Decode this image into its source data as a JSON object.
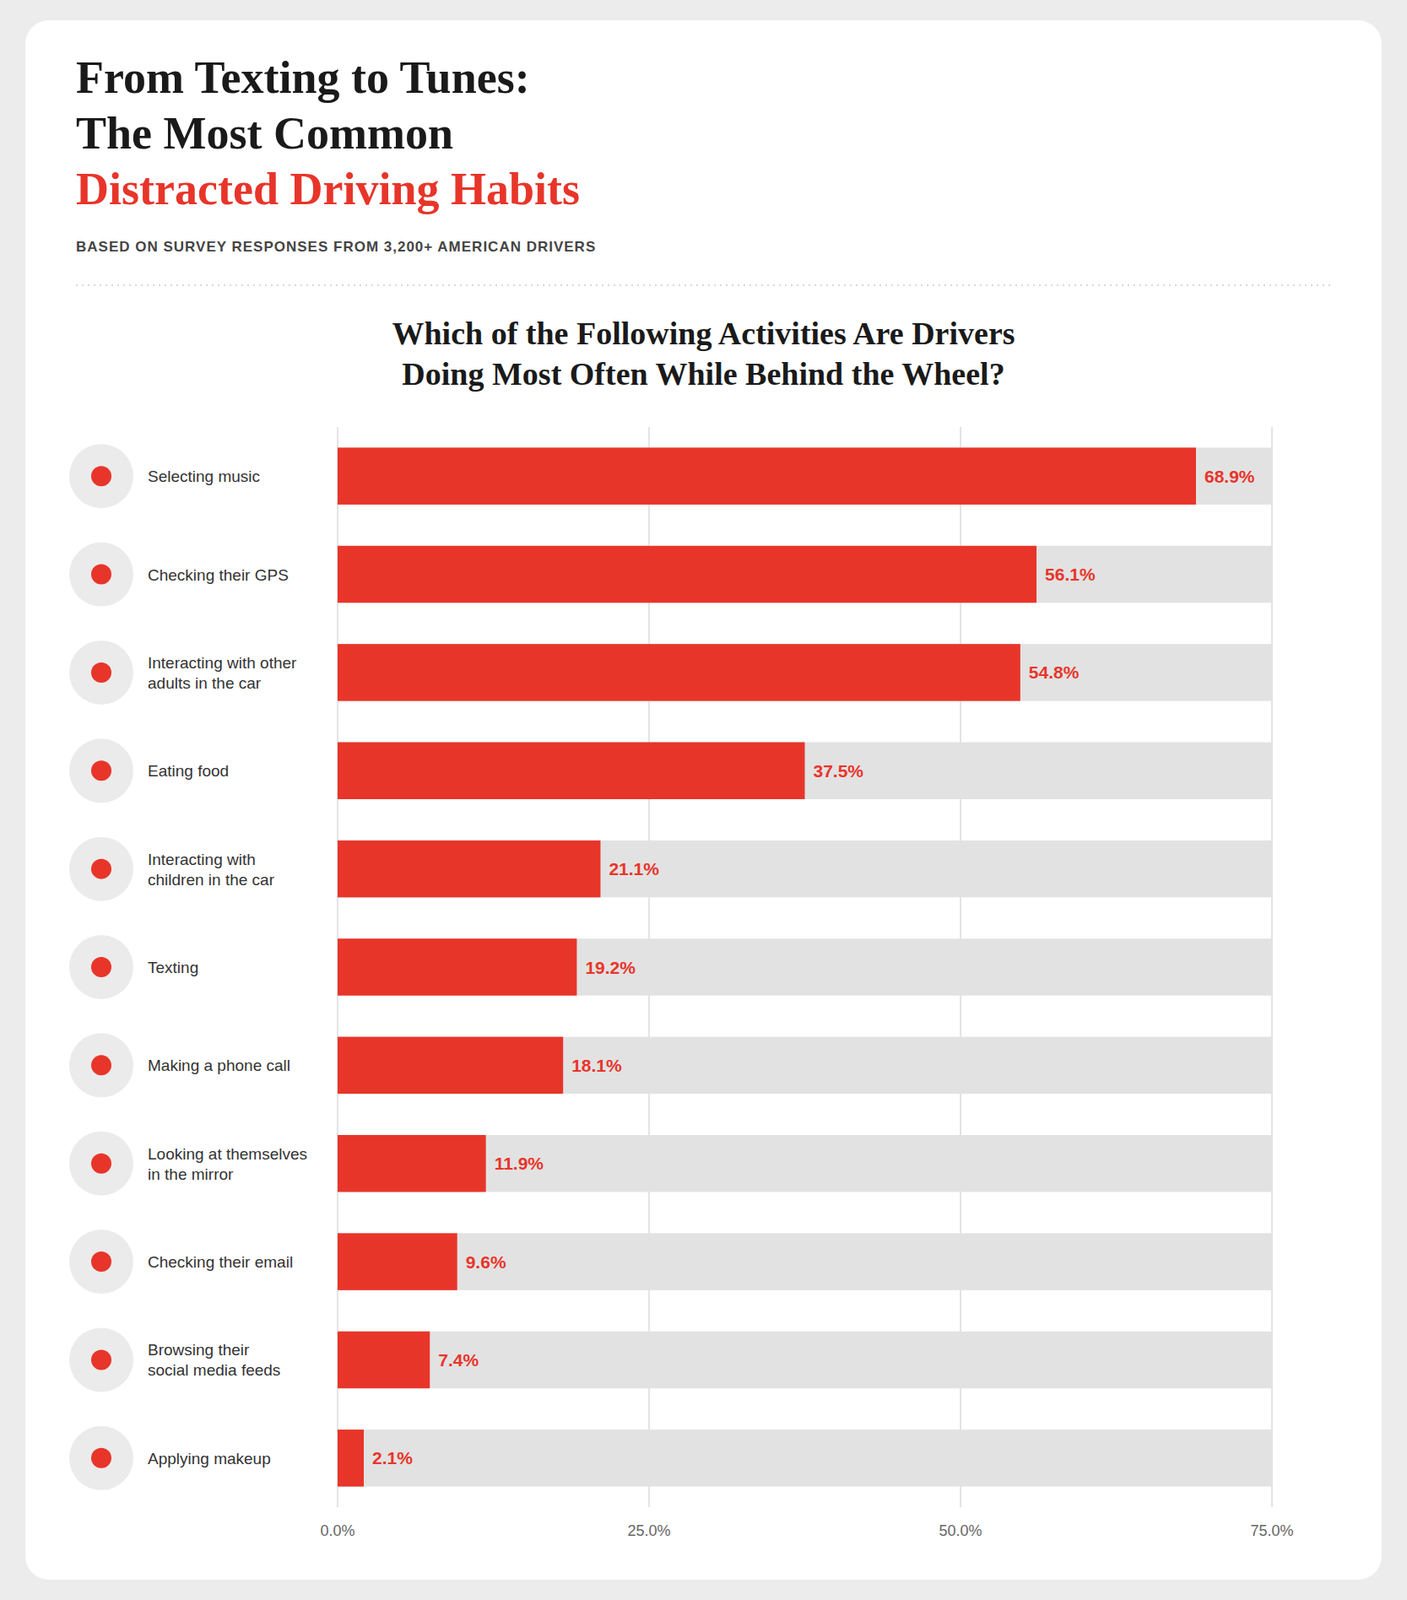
{
  "chart_data": {
    "type": "bar",
    "orientation": "horizontal",
    "title": "From Texting to Tunes:\nThe Most Common\nDistracted Driving Habits",
    "subtitle": "BASED ON SURVEY RESPONSES FROM 3,200+ AMERICAN DRIVERS",
    "annotations": [
      "Which of the Following Activities Are Drivers",
      "Doing Most Often While Behind the Wheel?"
    ],
    "categories": [
      "Selecting music",
      "Checking their GPS",
      "Interacting with other\nadults in the car",
      "Eating food",
      "Interacting with\nchildren in the car",
      "Texting",
      "Making a phone call",
      "Looking at themselves\nin the mirror",
      "Checking their email",
      "Browsing their\nsocial media feeds",
      "Applying makeup"
    ],
    "values": [
      68.9,
      56.1,
      54.8,
      37.5,
      21.1,
      19.2,
      18.1,
      11.9,
      9.6,
      7.4,
      2.1
    ],
    "value_labels": [
      "68.9%",
      "56.1%",
      "54.8%",
      "37.5%",
      "21.1%",
      "19.2%",
      "18.1%",
      "11.9%",
      "9.6%",
      "7.4%",
      "2.1%"
    ],
    "data_labels": true,
    "color": "#E8352A",
    "xlim": [
      0,
      75
    ],
    "xticks": [
      {
        "value": 0,
        "label": "0.0%"
      },
      {
        "value": 25,
        "label": "25.0%"
      },
      {
        "value": 50,
        "label": "50.0%"
      },
      {
        "value": 75,
        "label": "75.0%"
      }
    ],
    "grid": true
  }
}
